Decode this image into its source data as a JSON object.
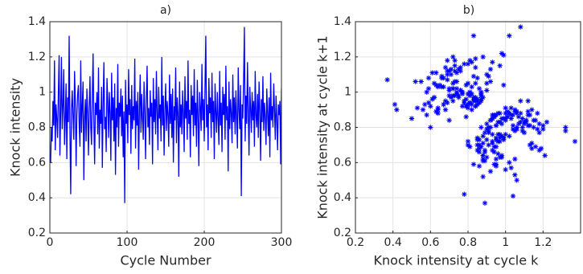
{
  "chart_data": [
    {
      "type": "line",
      "title": "a)",
      "x_label": "Cycle Number",
      "y_label": "Knock intensity",
      "color": "#0000ff",
      "xlim": [
        0,
        300
      ],
      "ylim": [
        0.2,
        1.4
      ],
      "xticks": [
        0,
        100,
        200,
        300
      ],
      "yticks": [
        0.2,
        0.4,
        0.6,
        0.8,
        1,
        1.2,
        1.4
      ],
      "grid": true,
      "x": [
        1,
        2,
        3,
        4,
        5,
        6,
        7,
        8,
        9,
        10,
        11,
        12,
        13,
        14,
        15,
        16,
        17,
        18,
        19,
        20,
        21,
        22,
        23,
        24,
        25,
        26,
        27,
        28,
        29,
        30,
        31,
        32,
        33,
        34,
        35,
        36,
        37,
        38,
        39,
        40,
        41,
        42,
        43,
        44,
        45,
        46,
        47,
        48,
        49,
        50,
        51,
        52,
        53,
        54,
        55,
        56,
        57,
        58,
        59,
        60,
        61,
        62,
        63,
        64,
        65,
        66,
        67,
        68,
        69,
        70,
        71,
        72,
        73,
        74,
        75,
        76,
        77,
        78,
        79,
        80,
        81,
        82,
        83,
        84,
        85,
        86,
        87,
        88,
        89,
        90,
        91,
        92,
        93,
        94,
        95,
        96,
        97,
        98,
        99,
        100,
        101,
        102,
        103,
        104,
        105,
        106,
        107,
        108,
        109,
        110,
        111,
        112,
        113,
        114,
        115,
        116,
        117,
        118,
        119,
        120,
        121,
        122,
        123,
        124,
        125,
        126,
        127,
        128,
        129,
        130,
        131,
        132,
        133,
        134,
        135,
        136,
        137,
        138,
        139,
        140,
        141,
        142,
        143,
        144,
        145,
        146,
        147,
        148,
        149,
        150,
        151,
        152,
        153,
        154,
        155,
        156,
        157,
        158,
        159,
        160,
        161,
        162,
        163,
        164,
        165,
        166,
        167,
        168,
        169,
        170,
        171,
        172,
        173,
        174,
        175,
        176,
        177,
        178,
        179,
        180,
        181,
        182,
        183,
        184,
        185,
        186,
        187,
        188,
        189,
        190,
        191,
        192,
        193,
        194,
        195,
        196,
        197,
        198,
        199,
        200,
        201,
        202,
        203,
        204,
        205,
        206,
        207,
        208,
        209,
        210,
        211,
        212,
        213,
        214,
        215,
        216,
        217,
        218,
        219,
        220,
        221,
        222,
        223,
        224,
        225,
        226,
        227,
        228,
        229,
        230,
        231,
        232,
        233,
        234,
        235,
        236,
        237,
        238,
        239,
        240,
        241,
        242,
        243,
        244,
        245,
        246,
        247,
        248,
        249,
        250,
        251,
        252,
        253,
        254,
        255,
        256,
        257,
        258,
        259,
        260,
        261,
        262,
        263,
        264,
        265,
        266,
        267,
        268,
        269,
        270,
        271,
        272,
        273,
        274,
        275,
        276,
        277,
        278,
        279,
        280,
        281,
        282,
        283,
        284,
        285,
        286,
        287,
        288,
        289,
        290,
        291,
        292,
        293,
        294,
        295,
        296,
        297,
        298,
        299,
        300
      ],
      "values": [
        0.6,
        0.8,
        0.72,
        0.95,
        0.81,
        1.18,
        0.67,
        0.93,
        0.85,
        0.74,
        0.99,
        1.21,
        0.64,
        0.88,
        1.2,
        0.79,
        0.92,
        1.13,
        0.7,
        0.84,
        1.05,
        0.62,
        0.97,
        0.83,
        1.32,
        0.78,
        0.42,
        0.9,
        1.01,
        0.86,
        0.73,
        1.12,
        0.95,
        0.58,
        0.87,
        0.99,
        1.04,
        0.81,
        0.69,
        1.18,
        0.77,
        0.92,
        1.06,
        0.5,
        0.85,
        0.96,
        0.72,
        1.02,
        0.88,
        0.64,
        0.91,
        1.09,
        0.8,
        0.7,
        0.98,
        1.22,
        0.83,
        0.59,
        0.94,
        0.87,
        1.0,
        0.76,
        1.14,
        0.68,
        0.9,
        0.82,
        1.03,
        0.57,
        0.93,
        1.17,
        0.79,
        0.86,
        0.66,
        1.08,
        0.95,
        0.74,
        1.0,
        0.88,
        0.61,
        1.11,
        0.84,
        0.97,
        0.72,
        1.05,
        0.53,
        0.91,
        0.8,
        1.16,
        0.69,
        0.94,
        0.86,
        1.02,
        0.75,
        0.98,
        0.63,
        0.89,
        0.37,
        1.07,
        0.82,
        0.93,
        0.71,
        1.13,
        0.87,
        0.96,
        0.65,
        1.04,
        0.79,
        0.92,
        0.84,
        1.19,
        0.68,
        0.95,
        0.81,
        1.0,
        0.56,
        0.9,
        1.1,
        0.77,
        0.99,
        0.85,
        0.73,
        1.06,
        0.88,
        0.62,
        0.97,
        1.15,
        0.8,
        0.91,
        0.7,
        1.01,
        0.86,
        0.94,
        0.59,
        1.08,
        0.83,
        0.96,
        0.76,
        1.12,
        0.89,
        0.67,
        1.03,
        0.85,
        0.93,
        0.72,
        1.2,
        0.81,
        0.98,
        0.64,
        0.9,
        1.05,
        0.78,
        0.95,
        0.87,
        0.69,
        1.1,
        0.82,
        0.99,
        0.74,
        1.02,
        0.6,
        0.92,
        0.84,
        1.14,
        0.71,
        0.97,
        0.88,
        0.52,
        1.06,
        0.8,
        0.93,
        0.76,
        1.01,
        0.89,
        0.66,
        1.09,
        0.85,
        0.95,
        0.73,
        1.18,
        0.82,
        0.9,
        0.63,
        1.04,
        0.87,
        0.98,
        0.75,
        1.13,
        0.81,
        0.94,
        0.69,
        1.07,
        0.86,
        0.58,
        1.0,
        0.91,
        0.78,
        1.16,
        0.84,
        0.96,
        0.72,
        1.02,
        1.32,
        0.8,
        0.93,
        0.67,
        1.08,
        0.88,
        0.97,
        0.74,
        1.11,
        0.83,
        0.95,
        0.62,
        1.05,
        0.89,
        0.77,
        1.0,
        0.85,
        0.7,
        1.12,
        0.81,
        0.94,
        0.66,
        1.03,
        0.87,
        0.99,
        0.73,
        1.15,
        0.84,
        0.92,
        0.55,
        1.06,
        0.79,
        0.96,
        0.88,
        0.71,
        1.1,
        0.83,
        0.97,
        0.76,
        1.01,
        0.86,
        0.68,
        1.14,
        0.9,
        0.79,
        1.04,
        0.41,
        0.93,
        0.85,
        1.08,
        1.37,
        0.72,
        0.98,
        0.82,
        1.17,
        0.88,
        0.64,
        1.03,
        0.91,
        0.77,
        1.0,
        0.84,
        0.95,
        0.69,
        1.12,
        0.87,
        0.8,
        0.99,
        0.74,
        1.06,
        0.89,
        0.61,
        0.96,
        0.83,
        1.09,
        0.78,
        0.94,
        0.86,
        0.7,
        1.02,
        0.88,
        0.75,
        0.97,
        0.63,
        1.11,
        0.84,
        0.92,
        0.8,
        1.05,
        0.9,
        0.73,
        0.98,
        0.85,
        0.67,
        0.93,
        0.87,
        0.95,
        0.59,
        1.02
      ]
    },
    {
      "type": "scatter",
      "title": "b)",
      "x_label": "Knock intensity at cycle k",
      "y_label": "Knock intensity at cycle k+1",
      "color": "#0000ff",
      "xlim": [
        0.2,
        1.4
      ],
      "ylim": [
        0.2,
        1.4
      ],
      "xticks": [
        0.2,
        0.4,
        0.6,
        0.8,
        1,
        1.2
      ],
      "yticks": [
        0.2,
        0.4,
        0.6,
        0.8,
        1,
        1.2,
        1.4
      ],
      "grid": true,
      "x": [
        0.6,
        0.8,
        0.72,
        0.95,
        0.81,
        1.18,
        0.67,
        0.93,
        0.85,
        0.74,
        0.99,
        1.21,
        0.64,
        0.88,
        1.2,
        0.79,
        0.92,
        1.13,
        0.7,
        0.84,
        1.05,
        0.62,
        0.97,
        0.83,
        1.32,
        0.78,
        0.42,
        0.9,
        1.01,
        0.86,
        0.73,
        1.12,
        0.95,
        0.58,
        0.87,
        0.99,
        1.04,
        0.81,
        0.69,
        1.18,
        0.77,
        0.92,
        1.06,
        0.5,
        0.85,
        0.96,
        0.72,
        1.02,
        0.88,
        0.64,
        0.91,
        1.09,
        0.8,
        0.7,
        0.98,
        1.22,
        0.83,
        0.59,
        0.94,
        0.87,
        1.0,
        0.76,
        1.14,
        0.68,
        0.9,
        0.82,
        1.03,
        0.57,
        0.93,
        1.17,
        0.79,
        0.86,
        0.66,
        1.08,
        0.95,
        0.74,
        1.0,
        0.88,
        0.61,
        1.11,
        0.84,
        0.97,
        0.72,
        1.05,
        0.53,
        0.91,
        0.8,
        1.16,
        0.69,
        0.94,
        0.86,
        1.02,
        0.75,
        0.98,
        0.63,
        0.89,
        0.37,
        1.07,
        0.82,
        0.93,
        0.71,
        1.13,
        0.87,
        0.96,
        0.65,
        1.04,
        0.79,
        0.92,
        0.84,
        1.19,
        0.68,
        0.95,
        0.81,
        1.0,
        0.56,
        0.9,
        1.1,
        0.77,
        0.99,
        0.85,
        0.73,
        1.06,
        0.88,
        0.62,
        0.97,
        1.15,
        0.8,
        0.91,
        0.7,
        1.01,
        0.86,
        0.94,
        0.59,
        1.08,
        0.83,
        0.96,
        0.76,
        1.12,
        0.89,
        0.67,
        1.03,
        0.85,
        0.93,
        0.72,
        1.2,
        0.81,
        0.98,
        0.64,
        0.9,
        1.05,
        0.78,
        0.95,
        0.87,
        0.69,
        1.1,
        0.82,
        0.99,
        0.74,
        1.02,
        0.6,
        0.92,
        0.84,
        1.14,
        0.71,
        0.97,
        0.88,
        0.52,
        1.06,
        0.8,
        0.93,
        0.76,
        1.01,
        0.89,
        0.66,
        1.09,
        0.85,
        0.95,
        0.73,
        1.18,
        0.82,
        0.9,
        0.63,
        1.04,
        0.87,
        0.98,
        0.75,
        1.13,
        0.81,
        0.94,
        0.69,
        1.07,
        0.86,
        0.58,
        1.0,
        0.91,
        0.78,
        1.16,
        0.84,
        0.96,
        0.72,
        1.02,
        1.32,
        0.8,
        0.93,
        0.67,
        1.08,
        0.88,
        0.97,
        0.74,
        1.11,
        0.83,
        0.95,
        0.62,
        1.05,
        0.89,
        0.77,
        1.0,
        0.85,
        0.7,
        1.12,
        0.81,
        0.94,
        0.66,
        1.03,
        0.87,
        0.99,
        0.73,
        1.15,
        0.84,
        0.92,
        0.55,
        1.06,
        0.79,
        0.96,
        0.88,
        0.71,
        1.1,
        0.83,
        0.97,
        0.76,
        1.01,
        0.86,
        0.68,
        1.14,
        0.9,
        0.79,
        1.04,
        0.41,
        0.93,
        0.85,
        1.08,
        1.37,
        0.72,
        0.98,
        0.82,
        1.17,
        0.88,
        0.64,
        1.03,
        0.91,
        0.77,
        1.0,
        0.84,
        0.95,
        0.69,
        1.12,
        0.87,
        0.8,
        0.99,
        0.74,
        1.06,
        0.89,
        0.61,
        0.96,
        0.83,
        1.09,
        0.78,
        0.94,
        0.86,
        0.7,
        1.02,
        0.88,
        0.75,
        0.97,
        0.63,
        1.11,
        0.84,
        0.92,
        0.8,
        1.05,
        0.9,
        0.73,
        0.98,
        0.85,
        0.67,
        0.93,
        0.87,
        0.95,
        0.59
      ],
      "values": [
        0.8,
        0.72,
        0.95,
        0.81,
        1.18,
        0.67,
        0.93,
        0.85,
        0.74,
        0.99,
        1.21,
        0.64,
        0.88,
        1.2,
        0.79,
        0.92,
        1.13,
        0.7,
        0.84,
        1.05,
        0.62,
        0.97,
        0.83,
        1.32,
        0.78,
        0.42,
        0.9,
        1.01,
        0.86,
        0.73,
        1.12,
        0.95,
        0.58,
        0.87,
        0.99,
        1.04,
        0.81,
        0.69,
        1.18,
        0.77,
        0.92,
        1.06,
        0.5,
        0.85,
        0.96,
        0.72,
        1.02,
        0.88,
        0.64,
        0.91,
        1.09,
        0.8,
        0.7,
        0.98,
        1.22,
        0.83,
        0.59,
        0.94,
        0.87,
        1.0,
        0.76,
        1.14,
        0.68,
        0.9,
        0.82,
        1.03,
        0.57,
        0.93,
        1.17,
        0.79,
        0.86,
        0.66,
        1.08,
        0.95,
        0.74,
        1.0,
        0.88,
        0.61,
        1.11,
        0.84,
        0.97,
        0.72,
        1.05,
        0.53,
        0.91,
        0.8,
        1.16,
        0.69,
        0.94,
        0.86,
        1.02,
        0.75,
        0.98,
        0.63,
        0.89,
        0.37,
        1.07,
        0.82,
        0.93,
        0.71,
        1.13,
        0.87,
        0.96,
        0.65,
        1.04,
        0.79,
        0.92,
        0.84,
        1.19,
        0.68,
        0.95,
        0.81,
        1.0,
        0.56,
        0.9,
        1.1,
        0.77,
        0.99,
        0.85,
        0.73,
        1.06,
        0.88,
        0.62,
        0.97,
        1.15,
        0.8,
        0.91,
        0.7,
        1.01,
        0.86,
        0.94,
        0.59,
        1.08,
        0.83,
        0.96,
        0.76,
        1.12,
        0.89,
        0.67,
        1.03,
        0.85,
        0.93,
        0.72,
        1.2,
        0.81,
        0.98,
        0.64,
        0.9,
        1.05,
        0.78,
        0.95,
        0.87,
        0.69,
        1.1,
        0.82,
        0.99,
        0.74,
        1.02,
        0.6,
        0.92,
        0.84,
        1.14,
        0.71,
        0.97,
        0.88,
        0.52,
        1.06,
        0.8,
        0.93,
        0.76,
        1.01,
        0.89,
        0.66,
        1.09,
        0.85,
        0.95,
        0.73,
        1.18,
        0.82,
        0.9,
        0.63,
        1.04,
        0.87,
        0.98,
        0.75,
        1.13,
        0.81,
        0.94,
        0.69,
        1.07,
        0.86,
        0.58,
        1.0,
        0.91,
        0.78,
        1.16,
        0.84,
        0.96,
        0.72,
        1.02,
        1.32,
        0.8,
        0.93,
        0.67,
        1.08,
        0.88,
        0.97,
        0.74,
        1.11,
        0.83,
        0.95,
        0.62,
        1.05,
        0.89,
        0.77,
        1.0,
        0.85,
        0.7,
        1.12,
        0.81,
        0.94,
        0.66,
        1.03,
        0.87,
        0.99,
        0.73,
        1.15,
        0.84,
        0.92,
        0.55,
        1.06,
        0.79,
        0.96,
        0.88,
        0.71,
        1.1,
        0.83,
        0.97,
        0.76,
        1.01,
        0.86,
        0.68,
        1.14,
        0.9,
        0.79,
        1.04,
        0.41,
        0.93,
        0.85,
        1.08,
        1.37,
        0.72,
        0.98,
        0.82,
        1.17,
        0.88,
        0.64,
        1.03,
        0.91,
        0.77,
        1.0,
        0.84,
        0.95,
        0.69,
        1.12,
        0.87,
        0.8,
        0.99,
        0.74,
        1.06,
        0.89,
        0.61,
        0.96,
        0.83,
        1.09,
        0.78,
        0.94,
        0.86,
        0.7,
        1.02,
        0.88,
        0.75,
        0.97,
        0.63,
        1.11,
        0.84,
        0.92,
        0.8,
        1.05,
        0.9,
        0.73,
        0.98,
        0.85,
        0.67,
        0.93,
        0.87,
        0.95,
        0.59,
        1.02
      ]
    }
  ]
}
